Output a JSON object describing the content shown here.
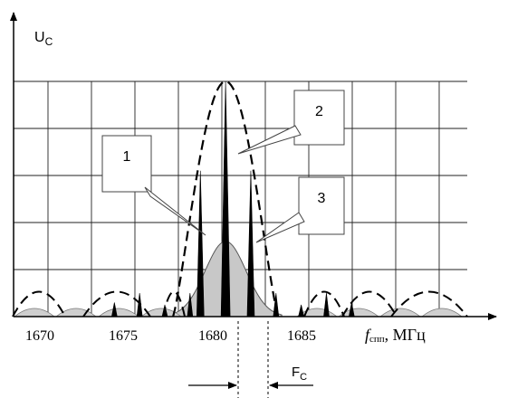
{
  "chart_data": {
    "type": "line",
    "title": "",
    "ylabel": "U",
    "ylabel_sub": "C",
    "xlabel_italic": "f",
    "xlabel_sub": "спп",
    "xlabel_unit": ", МГц",
    "xlim": [
      1667,
      1697.6
    ],
    "ylim": [
      0,
      1.0
    ],
    "grid": true,
    "x_ticks": [
      1670,
      1675,
      1680,
      1685
    ],
    "x_tick_labels": [
      "1670",
      "1675",
      "1680",
      "1685"
    ],
    "series": [
      {
        "style": "solid spectral lines",
        "x": [
          1673.8,
          1675.5,
          1677.2,
          1678.9,
          1679.6,
          1681.3,
          1683.0,
          1684.7,
          1686.4,
          1688.1,
          1689.8
        ],
        "y": [
          0.06,
          0.1,
          0.05,
          0.1,
          0.62,
          1.0,
          0.62,
          0.1,
          0.05,
          0.1,
          0.06
        ]
      },
      {
        "style": "dashed envelope",
        "peak_x": 1681.3,
        "peak_y": 1.0
      },
      {
        "style": "shaded spectrum",
        "peak_x": 1681.3,
        "peak_y": 0.32
      }
    ],
    "callouts": [
      {
        "label": "1",
        "target_x": 1679.6
      },
      {
        "label": "2",
        "target_x": 1681.3
      },
      {
        "label": "3",
        "target_x": 1681.8
      }
    ],
    "spacing_label": "F",
    "spacing_label_sub": "C"
  }
}
